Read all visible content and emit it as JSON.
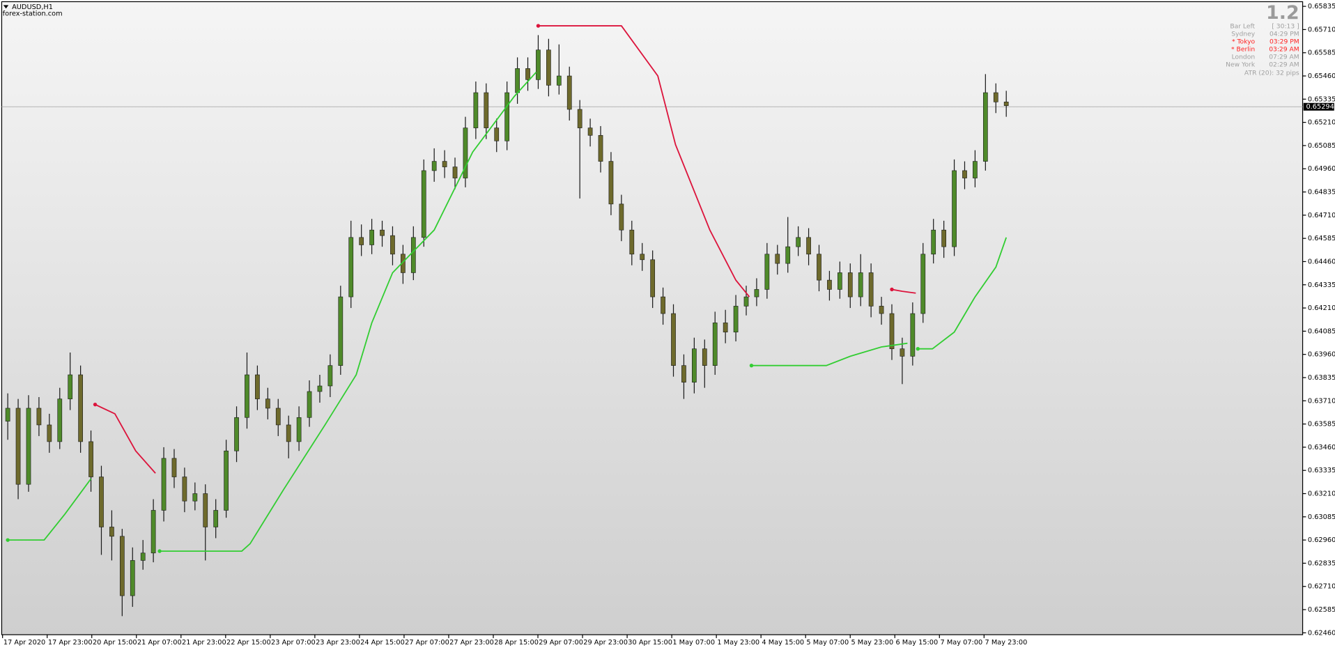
{
  "chart_data": {
    "type": "candlestick",
    "title": "AUDUSD,H1",
    "subtitle": "forex-station.com",
    "x_labels": [
      "17 Apr 2020",
      "17 Apr 23:00",
      "20 Apr 15:00",
      "21 Apr 07:00",
      "21 Apr 23:00",
      "22 Apr 15:00",
      "23 Apr 07:00",
      "23 Apr 23:00",
      "24 Apr 15:00",
      "27 Apr 07:00",
      "27 Apr 23:00",
      "28 Apr 15:00",
      "29 Apr 07:00",
      "29 Apr 23:00",
      "30 Apr 15:00",
      "1 May 07:00",
      "1 May 23:00",
      "4 May 15:00",
      "5 May 07:00",
      "5 May 23:00",
      "6 May 15:00",
      "7 May 07:00",
      "7 May 23:00"
    ],
    "ohlc": [
      [
        0.636,
        0.6375,
        0.635,
        0.6367
      ],
      [
        0.6367,
        0.6372,
        0.6318,
        0.6326
      ],
      [
        0.6326,
        0.6374,
        0.6322,
        0.6367
      ],
      [
        0.6367,
        0.6373,
        0.6352,
        0.6358
      ],
      [
        0.6358,
        0.6364,
        0.6343,
        0.6349
      ],
      [
        0.6349,
        0.6378,
        0.6345,
        0.6372
      ],
      [
        0.6372,
        0.6397,
        0.6366,
        0.6385
      ],
      [
        0.6385,
        0.639,
        0.6343,
        0.6349
      ],
      [
        0.6349,
        0.6355,
        0.6322,
        0.633
      ],
      [
        0.633,
        0.6336,
        0.6288,
        0.6303
      ],
      [
        0.6303,
        0.6312,
        0.6285,
        0.6298
      ],
      [
        0.6298,
        0.6302,
        0.6255,
        0.6266
      ],
      [
        0.6266,
        0.6292,
        0.626,
        0.6285
      ],
      [
        0.6285,
        0.6296,
        0.628,
        0.6289
      ],
      [
        0.6289,
        0.6318,
        0.6284,
        0.6312
      ],
      [
        0.6312,
        0.6346,
        0.6306,
        0.634
      ],
      [
        0.634,
        0.6345,
        0.6324,
        0.633
      ],
      [
        0.633,
        0.6335,
        0.6311,
        0.6317
      ],
      [
        0.6317,
        0.6327,
        0.6312,
        0.6321
      ],
      [
        0.6321,
        0.6326,
        0.6285,
        0.6303
      ],
      [
        0.6303,
        0.6318,
        0.6297,
        0.6312
      ],
      [
        0.6312,
        0.635,
        0.6308,
        0.6344
      ],
      [
        0.6344,
        0.6368,
        0.6338,
        0.6362
      ],
      [
        0.6362,
        0.6397,
        0.6356,
        0.6385
      ],
      [
        0.6385,
        0.639,
        0.6366,
        0.6372
      ],
      [
        0.6372,
        0.6378,
        0.6361,
        0.6367
      ],
      [
        0.6367,
        0.6372,
        0.6352,
        0.6358
      ],
      [
        0.6358,
        0.6363,
        0.634,
        0.6349
      ],
      [
        0.6349,
        0.6368,
        0.6344,
        0.6362
      ],
      [
        0.6362,
        0.6382,
        0.6357,
        0.6376
      ],
      [
        0.6376,
        0.6385,
        0.637,
        0.6379
      ],
      [
        0.6379,
        0.6396,
        0.6373,
        0.639
      ],
      [
        0.639,
        0.6433,
        0.6385,
        0.6427
      ],
      [
        0.6427,
        0.6468,
        0.6421,
        0.6459
      ],
      [
        0.6459,
        0.6466,
        0.6449,
        0.6455
      ],
      [
        0.6455,
        0.6469,
        0.645,
        0.6463
      ],
      [
        0.6463,
        0.6468,
        0.6454,
        0.646
      ],
      [
        0.646,
        0.6465,
        0.6444,
        0.645
      ],
      [
        0.645,
        0.6455,
        0.6434,
        0.644
      ],
      [
        0.644,
        0.6465,
        0.6436,
        0.6459
      ],
      [
        0.6459,
        0.6501,
        0.6454,
        0.6495
      ],
      [
        0.6495,
        0.6507,
        0.6489,
        0.65
      ],
      [
        0.65,
        0.6506,
        0.6491,
        0.6497
      ],
      [
        0.6497,
        0.6502,
        0.6485,
        0.6491
      ],
      [
        0.6491,
        0.6524,
        0.6486,
        0.6518
      ],
      [
        0.6518,
        0.6543,
        0.6512,
        0.6537
      ],
      [
        0.6537,
        0.6542,
        0.6512,
        0.6518
      ],
      [
        0.6518,
        0.6523,
        0.6505,
        0.6511
      ],
      [
        0.6511,
        0.6543,
        0.6506,
        0.6537
      ],
      [
        0.6537,
        0.6556,
        0.6531,
        0.655
      ],
      [
        0.655,
        0.6556,
        0.6538,
        0.6544
      ],
      [
        0.6544,
        0.6568,
        0.6539,
        0.656
      ],
      [
        0.656,
        0.6566,
        0.6535,
        0.6541
      ],
      [
        0.6541,
        0.6563,
        0.6536,
        0.6546
      ],
      [
        0.6546,
        0.6551,
        0.6522,
        0.6528
      ],
      [
        0.6528,
        0.6533,
        0.648,
        0.6518
      ],
      [
        0.6518,
        0.6523,
        0.6508,
        0.6514
      ],
      [
        0.6514,
        0.6519,
        0.6494,
        0.65
      ],
      [
        0.65,
        0.6505,
        0.6471,
        0.6477
      ],
      [
        0.6477,
        0.6482,
        0.6457,
        0.6463
      ],
      [
        0.6463,
        0.6468,
        0.6444,
        0.645
      ],
      [
        0.645,
        0.6456,
        0.6441,
        0.6447
      ],
      [
        0.6447,
        0.6452,
        0.6421,
        0.6427
      ],
      [
        0.6427,
        0.6432,
        0.6412,
        0.6418
      ],
      [
        0.6418,
        0.6423,
        0.6384,
        0.639
      ],
      [
        0.639,
        0.6396,
        0.6372,
        0.6381
      ],
      [
        0.6381,
        0.6405,
        0.6375,
        0.6399
      ],
      [
        0.6399,
        0.6404,
        0.6378,
        0.639
      ],
      [
        0.639,
        0.6419,
        0.6385,
        0.6413
      ],
      [
        0.6413,
        0.642,
        0.6402,
        0.6408
      ],
      [
        0.6408,
        0.6428,
        0.6403,
        0.6422
      ],
      [
        0.6422,
        0.6433,
        0.6417,
        0.6427
      ],
      [
        0.6427,
        0.6437,
        0.6422,
        0.6431
      ],
      [
        0.6431,
        0.6456,
        0.6426,
        0.645
      ],
      [
        0.645,
        0.6455,
        0.6439,
        0.6445
      ],
      [
        0.6445,
        0.647,
        0.644,
        0.6454
      ],
      [
        0.6454,
        0.6465,
        0.6449,
        0.6459
      ],
      [
        0.6459,
        0.6464,
        0.6444,
        0.645
      ],
      [
        0.645,
        0.6455,
        0.643,
        0.6436
      ],
      [
        0.6436,
        0.6441,
        0.6425,
        0.6431
      ],
      [
        0.6431,
        0.6446,
        0.6426,
        0.644
      ],
      [
        0.644,
        0.6445,
        0.6421,
        0.6427
      ],
      [
        0.6427,
        0.645,
        0.6422,
        0.644
      ],
      [
        0.644,
        0.6445,
        0.6416,
        0.6422
      ],
      [
        0.6422,
        0.6427,
        0.6412,
        0.6418
      ],
      [
        0.6418,
        0.6423,
        0.6393,
        0.6399
      ],
      [
        0.6399,
        0.6405,
        0.638,
        0.6395
      ],
      [
        0.6395,
        0.6424,
        0.639,
        0.6418
      ],
      [
        0.6418,
        0.6456,
        0.6413,
        0.645
      ],
      [
        0.645,
        0.6469,
        0.6445,
        0.6463
      ],
      [
        0.6463,
        0.6468,
        0.6448,
        0.6454
      ],
      [
        0.6454,
        0.6501,
        0.6449,
        0.6495
      ],
      [
        0.6495,
        0.65,
        0.6485,
        0.6491
      ],
      [
        0.6491,
        0.6506,
        0.6486,
        0.65
      ],
      [
        0.65,
        0.6547,
        0.6495,
        0.6537
      ],
      [
        0.6537,
        0.6542,
        0.6526,
        0.6532
      ],
      [
        0.6532,
        0.6538,
        0.6524,
        0.653
      ]
    ],
    "bull_color": "#4f8a2a",
    "bear_color": "#6e6a2c",
    "wick_color": "#1a1a1a",
    "lines": [
      {
        "color": "#32cd32",
        "points": [
          [
            0,
            0.6296
          ],
          [
            3.5,
            0.6296
          ],
          [
            5.5,
            0.631
          ],
          [
            8,
            0.6329
          ]
        ]
      },
      {
        "color": "#dc143c",
        "points": [
          [
            8.4,
            0.6369
          ],
          [
            10.3,
            0.6364
          ],
          [
            12.3,
            0.6344
          ],
          [
            14.2,
            0.6332
          ]
        ]
      },
      {
        "color": "#32cd32",
        "points": [
          [
            14.6,
            0.629
          ],
          [
            22.5,
            0.629
          ],
          [
            23.3,
            0.6294
          ],
          [
            26.5,
            0.6323
          ],
          [
            30.5,
            0.6358
          ],
          [
            33.5,
            0.6385
          ],
          [
            35,
            0.6413
          ],
          [
            37,
            0.644
          ],
          [
            41,
            0.6463
          ],
          [
            44.7,
            0.6505
          ],
          [
            48.7,
            0.6535
          ],
          [
            50.8,
            0.6548
          ]
        ]
      },
      {
        "color": "#dc143c",
        "points": [
          [
            51,
            0.6573
          ],
          [
            59,
            0.6573
          ],
          [
            62.5,
            0.6546
          ],
          [
            64.2,
            0.6509
          ],
          [
            67.5,
            0.6463
          ],
          [
            70,
            0.6436
          ],
          [
            71.3,
            0.6427
          ]
        ]
      },
      {
        "color": "#32cd32",
        "points": [
          [
            71.5,
            0.639
          ],
          [
            78.7,
            0.639
          ],
          [
            81,
            0.6395
          ],
          [
            84,
            0.64
          ],
          [
            86.5,
            0.6402
          ]
        ]
      },
      {
        "color": "#dc143c",
        "points": [
          [
            85,
            0.6431
          ],
          [
            86,
            0.643
          ],
          [
            87.3,
            0.6429
          ]
        ]
      },
      {
        "color": "#32cd32",
        "points": [
          [
            87.5,
            0.6399
          ],
          [
            88.9,
            0.6399
          ],
          [
            91,
            0.6408
          ],
          [
            93,
            0.6427
          ],
          [
            95,
            0.6443
          ],
          [
            96,
            0.6459
          ]
        ]
      }
    ],
    "current_price": 0.65294,
    "ylim": [
      0.6245,
      0.6586
    ],
    "yticks": [
      0.65835,
      {
        "value": 0.6571,
        "label": "0.65710"
      },
      0.65585,
      {
        "value": 0.6546,
        "label": "0.65460"
      },
      0.65335,
      {
        "value": 0.6521,
        "label": "0.65210"
      },
      0.65085,
      {
        "value": 0.6496,
        "label": "0.64960"
      },
      0.64835,
      {
        "value": 0.6471,
        "label": "0.64710"
      },
      0.64585,
      {
        "value": 0.6446,
        "label": "0.64460"
      },
      0.64335,
      {
        "value": 0.6421,
        "label": "0.64210"
      },
      0.64085,
      {
        "value": 0.6396,
        "label": "0.63960"
      },
      0.63835,
      {
        "value": 0.6371,
        "label": "0.63710"
      },
      0.63585,
      {
        "value": 0.6346,
        "label": "0.63460"
      },
      0.63335,
      {
        "value": 0.6321,
        "label": "0.63210"
      },
      0.63085,
      {
        "value": 0.6296,
        "label": "0.62960"
      },
      0.62835,
      {
        "value": 0.6271,
        "label": "0.62710"
      },
      0.62585,
      {
        "value": 0.6246,
        "label": "0.62460"
      }
    ],
    "info": {
      "version": "1.2",
      "rows": [
        {
          "name": "Bar Left",
          "time": "[ 30:13 ]",
          "color": "#a0a0a0"
        },
        {
          "name": "Sydney",
          "time": "04:29 PM",
          "color": "#a0a0a0"
        },
        {
          "name": "* Tokyo",
          "time": "03:29 PM",
          "color": "#ff2020"
        },
        {
          "name": "* Berlin",
          "time": "03:29 AM",
          "color": "#ff2020"
        },
        {
          "name": "London",
          "time": "07:29 AM",
          "color": "#a0a0a0"
        },
        {
          "name": "New York",
          "time": "02:29 AM",
          "color": "#a0a0a0"
        }
      ],
      "atr": "ATR (20): 32 pips"
    }
  }
}
